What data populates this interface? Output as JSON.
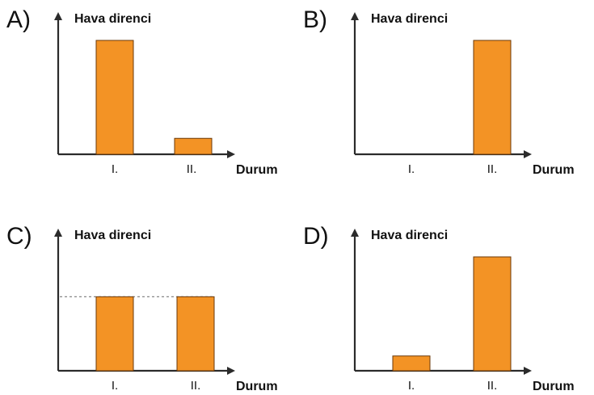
{
  "colors": {
    "bar": "#f39325",
    "bar_stroke": "#6b3a0a",
    "axis": "#2b2b2b",
    "guide": "#888888"
  },
  "chart_data": [
    {
      "type": "bar",
      "option_label": "A)",
      "ylabel": "Hava direnci",
      "xlabel": "Durum",
      "categories": [
        "I.",
        "II."
      ],
      "values": [
        100,
        14
      ],
      "ylim": [
        0,
        100
      ],
      "reference_line": false
    },
    {
      "type": "bar",
      "option_label": "B)",
      "ylabel": "Hava direnci",
      "xlabel": "Durum",
      "categories": [
        "I.",
        "II."
      ],
      "values": [
        0,
        100
      ],
      "ylim": [
        0,
        100
      ],
      "reference_line": false
    },
    {
      "type": "bar",
      "option_label": "C)",
      "ylabel": "Hava direnci",
      "xlabel": "Durum",
      "categories": [
        "I.",
        "II."
      ],
      "values": [
        65,
        65
      ],
      "ylim": [
        0,
        100
      ],
      "reference_line": true
    },
    {
      "type": "bar",
      "option_label": "D)",
      "ylabel": "Hava direnci",
      "xlabel": "Durum",
      "categories": [
        "I.",
        "II."
      ],
      "values": [
        13,
        100
      ],
      "ylim": [
        0,
        100
      ],
      "reference_line": false
    }
  ]
}
